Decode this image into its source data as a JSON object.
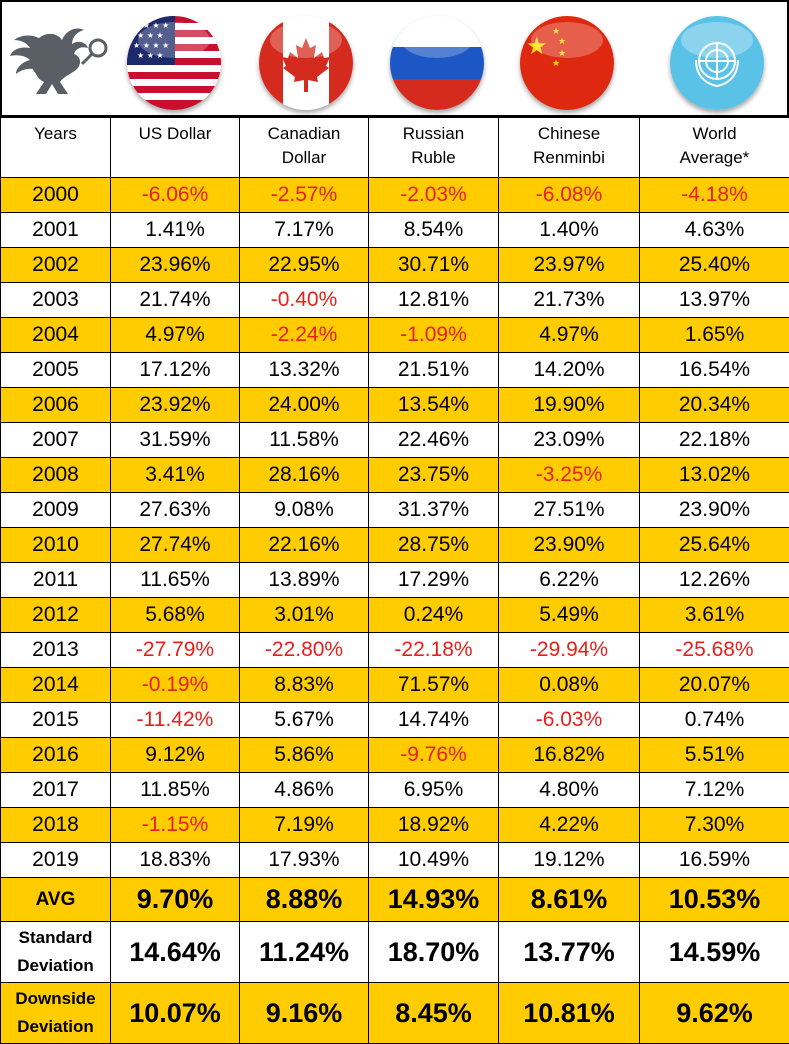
{
  "header": {
    "logo_icon": "griffin-logo-icon",
    "flags": [
      {
        "name": "us-flag-icon"
      },
      {
        "name": "canada-flag-icon"
      },
      {
        "name": "russia-flag-icon"
      },
      {
        "name": "china-flag-icon"
      },
      {
        "name": "united-nations-flag-icon"
      }
    ]
  },
  "colors": {
    "highlight": "#FFCC00",
    "negative": "#E8201A"
  },
  "chart_data": {
    "type": "table",
    "columns": [
      "Years",
      "US Dollar",
      "Canadian Dollar",
      "Russian Ruble",
      "Chinese Renminbi",
      "World Average*"
    ],
    "rows": [
      [
        "2000",
        "-6.06%",
        "-2.57%",
        "-2.03%",
        "-6.08%",
        "-4.18%"
      ],
      [
        "2001",
        "1.41%",
        "7.17%",
        "8.54%",
        "1.40%",
        "4.63%"
      ],
      [
        "2002",
        "23.96%",
        "22.95%",
        "30.71%",
        "23.97%",
        "25.40%"
      ],
      [
        "2003",
        "21.74%",
        "-0.40%",
        "12.81%",
        "21.73%",
        "13.97%"
      ],
      [
        "2004",
        "4.97%",
        "-2.24%",
        "-1.09%",
        "4.97%",
        "1.65%"
      ],
      [
        "2005",
        "17.12%",
        "13.32%",
        "21.51%",
        "14.20%",
        "16.54%"
      ],
      [
        "2006",
        "23.92%",
        "24.00%",
        "13.54%",
        "19.90%",
        "20.34%"
      ],
      [
        "2007",
        "31.59%",
        "11.58%",
        "22.46%",
        "23.09%",
        "22.18%"
      ],
      [
        "2008",
        "3.41%",
        "28.16%",
        "23.75%",
        "-3.25%",
        "13.02%"
      ],
      [
        "2009",
        "27.63%",
        "9.08%",
        "31.37%",
        "27.51%",
        "23.90%"
      ],
      [
        "2010",
        "27.74%",
        "22.16%",
        "28.75%",
        "23.90%",
        "25.64%"
      ],
      [
        "2011",
        "11.65%",
        "13.89%",
        "17.29%",
        "6.22%",
        "12.26%"
      ],
      [
        "2012",
        "5.68%",
        "3.01%",
        "0.24%",
        "5.49%",
        "3.61%"
      ],
      [
        "2013",
        "-27.79%",
        "-22.80%",
        "-22.18%",
        "-29.94%",
        "-25.68%"
      ],
      [
        "2014",
        "-0.19%",
        "8.83%",
        "71.57%",
        "0.08%",
        "20.07%"
      ],
      [
        "2015",
        "-11.42%",
        "5.67%",
        "14.74%",
        "-6.03%",
        "0.74%"
      ],
      [
        "2016",
        "9.12%",
        "5.86%",
        "-9.76%",
        "16.82%",
        "5.51%"
      ],
      [
        "2017",
        "11.85%",
        "4.86%",
        "6.95%",
        "4.80%",
        "7.12%"
      ],
      [
        "2018",
        "-1.15%",
        "7.19%",
        "18.92%",
        "4.22%",
        "7.30%"
      ],
      [
        "2019",
        "18.83%",
        "17.93%",
        "10.49%",
        "19.12%",
        "16.59%"
      ]
    ],
    "summary": [
      {
        "label": "AVG",
        "values": [
          "9.70%",
          "8.88%",
          "14.93%",
          "8.61%",
          "10.53%"
        ]
      },
      {
        "label": "Standard Deviation",
        "values": [
          "14.64%",
          "11.24%",
          "18.70%",
          "13.77%",
          "14.59%"
        ]
      },
      {
        "label": "Downside Deviation",
        "values": [
          "10.07%",
          "9.16%",
          "8.45%",
          "10.81%",
          "9.62%"
        ]
      }
    ]
  }
}
